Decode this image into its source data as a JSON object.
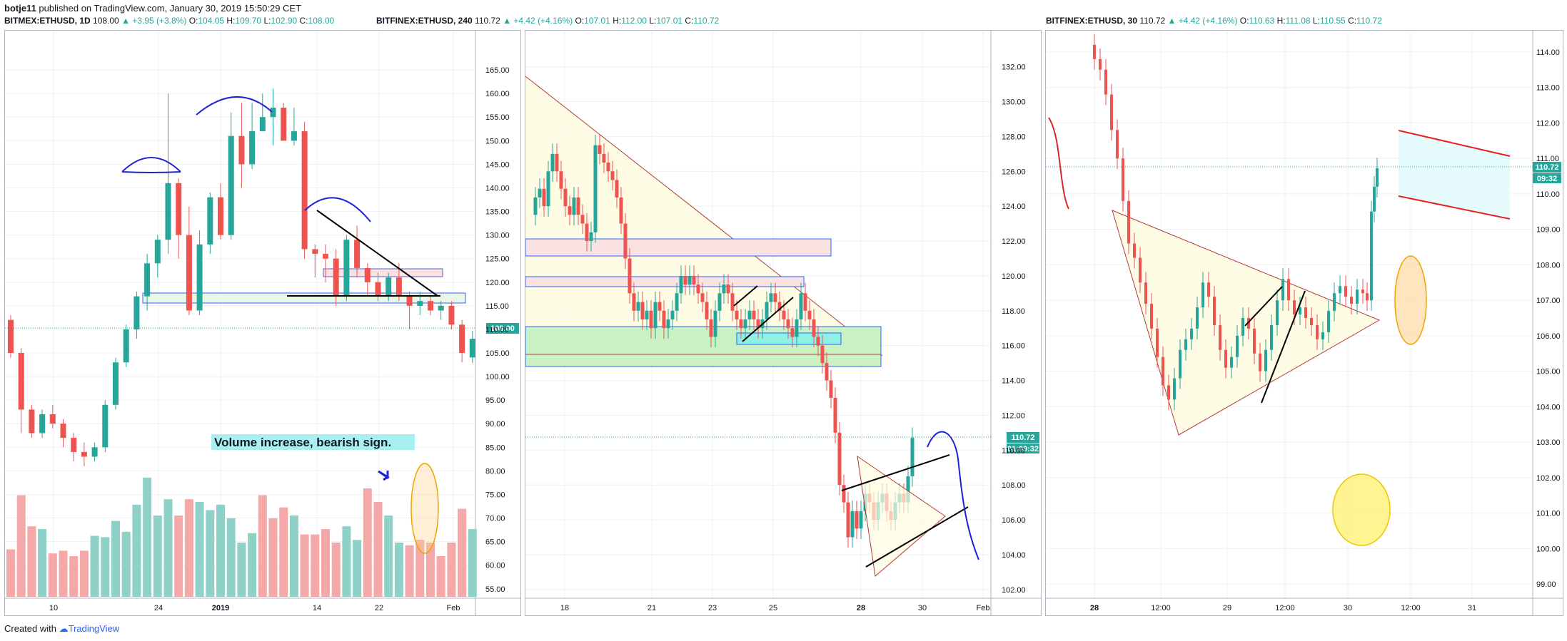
{
  "header": {
    "author": "botje11",
    "published_text": "published on TradingView.com, January 30, 2019 15:50:29 CET"
  },
  "footer": {
    "created_with": "Created with",
    "brand": "TradingView"
  },
  "colors": {
    "up": "#26a69a",
    "down": "#ef5350",
    "up_vol": "#8fd0c9",
    "down_vol": "#f4a8a8",
    "grid": "#eef0f3",
    "border": "#b2b5be"
  },
  "panels": [
    {
      "symbol": "BITMEX:ETHUSD, 1D",
      "last": "108.00",
      "change": "▲ +3.95 (+3.8%)",
      "o_label": "O:",
      "o": "104.05",
      "h_label": "H:",
      "h": "109.70",
      "l_label": "L:",
      "l": "102.90",
      "c_label": "C:",
      "c": "108.00",
      "price_tag": "108.00",
      "annotation": "Volume increase, bearish sign."
    },
    {
      "symbol": "BITFINEX:ETHUSD, 240",
      "last": "110.72",
      "change": "▲ +4.42 (+4.16%)",
      "o_label": "O:",
      "o": "107.01",
      "h_label": "H:",
      "h": "112.00",
      "l_label": "L:",
      "l": "107.01",
      "c_label": "C:",
      "c": "110.72",
      "price_tag": "110.72",
      "countdown": "01:09:32"
    },
    {
      "symbol": "BITFINEX:ETHUSD, 30",
      "last": "110.72",
      "change": "▲ +4.42 (+4.16%)",
      "o_label": "O:",
      "o": "110.63",
      "h_label": "H:",
      "h": "111.08",
      "l_label": "L:",
      "l": "110.55",
      "c_label": "C:",
      "c": "110.72",
      "price_tag": "110.72",
      "countdown": "09:32"
    }
  ],
  "chart_data": [
    {
      "type": "candlestick",
      "title": "BITMEX:ETHUSD, 1D",
      "y_ticks": [
        "165.00",
        "160.00",
        "155.00",
        "150.00",
        "145.00",
        "140.00",
        "135.00",
        "130.00",
        "125.00",
        "120.00",
        "115.00",
        "110.00",
        "105.00",
        "100.00",
        "95.00",
        "90.00",
        "85.00",
        "80.00",
        "75.00",
        "70.00",
        "65.00",
        "60.00",
        "55.00"
      ],
      "ylim": [
        53,
        170
      ],
      "x_ticks": [
        "10",
        "24",
        "2019",
        "14",
        "22",
        "Feb"
      ],
      "candles": [
        [
          112,
          113,
          104,
          105
        ],
        [
          105,
          106,
          88,
          93
        ],
        [
          93,
          94,
          87,
          88
        ],
        [
          88,
          93,
          87,
          92
        ],
        [
          92,
          94,
          89,
          90
        ],
        [
          90,
          91,
          85,
          87
        ],
        [
          87,
          88,
          82,
          84
        ],
        [
          84,
          86,
          81,
          83
        ],
        [
          83,
          86,
          82,
          85
        ],
        [
          85,
          95,
          84,
          94
        ],
        [
          94,
          104,
          93,
          103
        ],
        [
          103,
          111,
          102,
          110
        ],
        [
          110,
          118,
          108,
          117
        ],
        [
          117,
          126,
          114,
          124
        ],
        [
          124,
          130,
          121,
          129
        ],
        [
          129,
          160,
          126,
          141
        ],
        [
          141,
          142,
          125,
          130
        ],
        [
          130,
          136,
          113,
          114
        ],
        [
          114,
          131,
          113,
          128
        ],
        [
          128,
          139,
          126,
          138
        ],
        [
          138,
          141,
          129,
          130
        ],
        [
          130,
          156,
          129,
          151
        ],
        [
          151,
          158,
          140,
          145
        ],
        [
          145,
          158,
          144,
          152
        ],
        [
          152,
          160,
          152,
          155
        ],
        [
          155,
          161,
          149,
          157
        ],
        [
          157,
          158,
          150,
          150
        ],
        [
          150,
          157,
          149,
          152
        ],
        [
          152,
          154,
          125,
          127
        ],
        [
          127,
          128,
          121,
          126
        ],
        [
          126,
          128,
          120,
          125
        ],
        [
          125,
          127,
          115,
          117
        ],
        [
          117,
          130,
          116,
          129
        ],
        [
          129,
          132,
          121,
          123
        ],
        [
          123,
          124,
          117,
          120
        ],
        [
          120,
          122,
          116,
          117
        ],
        [
          117,
          122,
          116,
          121
        ],
        [
          121,
          124,
          116,
          117
        ],
        [
          117,
          118,
          110,
          115
        ],
        [
          115,
          118,
          113,
          116
        ],
        [
          116,
          117,
          113,
          114
        ],
        [
          114,
          116,
          112,
          115
        ],
        [
          115,
          116,
          110,
          111
        ],
        [
          111,
          112,
          103,
          105
        ],
        [
          104.05,
          109.7,
          102.9,
          108
        ]
      ],
      "volume_direction": [
        "d",
        "d",
        "d",
        "u",
        "d",
        "d",
        "d",
        "d",
        "u",
        "u",
        "u",
        "u",
        "u",
        "u",
        "u",
        "u",
        "d",
        "d",
        "u",
        "u",
        "u",
        "u",
        "u",
        "u",
        "d",
        "d",
        "d",
        "u",
        "d",
        "d",
        "d",
        "d",
        "u",
        "u",
        "d",
        "d",
        "u",
        "u",
        "d",
        "d",
        "d",
        "d",
        "d",
        "d",
        "u"
      ],
      "volume_relative": [
        0.35,
        0.75,
        0.52,
        0.5,
        0.32,
        0.34,
        0.3,
        0.34,
        0.45,
        0.44,
        0.56,
        0.48,
        0.68,
        0.88,
        0.6,
        0.72,
        0.6,
        0.72,
        0.7,
        0.64,
        0.68,
        0.58,
        0.4,
        0.47,
        0.75,
        0.58,
        0.66,
        0.6,
        0.46,
        0.46,
        0.5,
        0.4,
        0.52,
        0.42,
        0.8,
        0.7,
        0.6,
        0.4,
        0.38,
        0.42,
        0.4,
        0.3,
        0.4,
        0.65,
        0.5
      ],
      "annotations": [
        "Volume increase, bearish sign."
      ]
    },
    {
      "type": "candlestick",
      "title": "BITFINEX:ETHUSD, 240",
      "y_ticks": [
        "132.00",
        "130.00",
        "128.00",
        "126.00",
        "124.00",
        "122.00",
        "120.00",
        "118.00",
        "116.00",
        "114.00",
        "112.00",
        "110.00",
        "108.00",
        "106.00",
        "104.00",
        "102.00"
      ],
      "ylim": [
        101.5,
        133.5
      ],
      "x_ticks": [
        "18",
        "21",
        "23",
        "25",
        "28",
        "30",
        "Feb"
      ]
    },
    {
      "type": "candlestick",
      "title": "BITFINEX:ETHUSD, 30",
      "y_ticks": [
        "114.00",
        "113.00",
        "112.00",
        "111.00",
        "110.00",
        "109.00",
        "108.00",
        "107.00",
        "106.00",
        "105.00",
        "104.00",
        "103.00",
        "102.00",
        "101.00",
        "100.00",
        "99.00"
      ],
      "ylim": [
        98.6,
        114.4
      ],
      "x_ticks": [
        "28",
        "12:00",
        "29",
        "12:00",
        "30",
        "12:00",
        "31"
      ]
    }
  ]
}
